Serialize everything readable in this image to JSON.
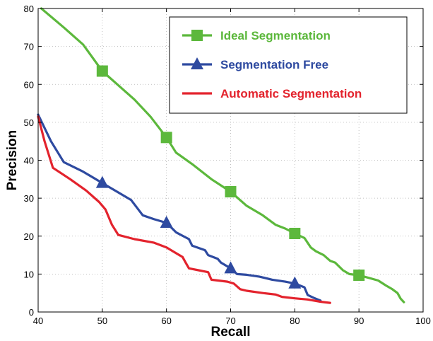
{
  "chart_data": {
    "type": "line",
    "xlabel": "Recall",
    "ylabel": "Precision",
    "xlim": [
      40,
      100
    ],
    "ylim": [
      0,
      80
    ],
    "xticks": [
      40,
      50,
      60,
      70,
      80,
      90,
      100
    ],
    "yticks": [
      0,
      10,
      20,
      30,
      40,
      50,
      60,
      70,
      80
    ],
    "grid": true,
    "legend_position": "top-right",
    "series": [
      {
        "name": "Ideal Segmentation",
        "color": "#5cb83c",
        "marker": "square",
        "marker_points": [
          [
            50,
            63.5
          ],
          [
            60,
            46
          ],
          [
            70,
            31.7
          ],
          [
            80,
            20.7
          ],
          [
            90,
            9.7
          ]
        ],
        "points": [
          [
            40.5,
            80
          ],
          [
            44,
            75
          ],
          [
            47,
            70.5
          ],
          [
            50,
            63.5
          ],
          [
            52,
            60.5
          ],
          [
            55,
            56
          ],
          [
            57.5,
            51.5
          ],
          [
            60,
            46
          ],
          [
            61.5,
            42
          ],
          [
            64,
            39
          ],
          [
            67,
            35
          ],
          [
            70,
            31.7
          ],
          [
            72.5,
            28
          ],
          [
            75,
            25.5
          ],
          [
            77,
            23
          ],
          [
            78.5,
            22
          ],
          [
            80,
            20.7
          ],
          [
            81.5,
            19.5
          ],
          [
            82.5,
            17
          ],
          [
            83.3,
            16
          ],
          [
            84.5,
            15
          ],
          [
            85.5,
            13.5
          ],
          [
            86.3,
            13
          ],
          [
            87.5,
            11
          ],
          [
            88.5,
            10
          ],
          [
            90,
            9.7
          ],
          [
            91.5,
            9
          ],
          [
            93,
            8.3
          ],
          [
            94.2,
            7
          ],
          [
            95.2,
            6
          ],
          [
            96,
            5
          ],
          [
            96.5,
            3.5
          ],
          [
            97,
            2.6
          ]
        ]
      },
      {
        "name": "Segmentation Free",
        "color": "#2e4aa0",
        "marker": "triangle",
        "marker_points": [
          [
            50,
            34
          ],
          [
            60,
            23.5
          ],
          [
            70,
            11.5
          ],
          [
            80,
            7.5
          ]
        ],
        "points": [
          [
            40,
            52
          ],
          [
            42,
            45
          ],
          [
            44,
            39.5
          ],
          [
            47,
            37
          ],
          [
            50,
            34
          ],
          [
            52,
            32
          ],
          [
            54.5,
            29.5
          ],
          [
            56.3,
            25.5
          ],
          [
            58,
            24.5
          ],
          [
            60,
            23.5
          ],
          [
            61.5,
            21
          ],
          [
            63.5,
            19.2
          ],
          [
            64,
            17.5
          ],
          [
            66,
            16.3
          ],
          [
            66.5,
            15
          ],
          [
            68,
            14
          ],
          [
            68.5,
            13
          ],
          [
            70,
            11.5
          ],
          [
            71,
            10
          ],
          [
            72.5,
            9.8
          ],
          [
            74.5,
            9.3
          ],
          [
            76.5,
            8.5
          ],
          [
            78.5,
            8
          ],
          [
            80,
            7.5
          ],
          [
            81.5,
            6.5
          ],
          [
            82,
            4.5
          ],
          [
            83,
            3.7
          ],
          [
            84,
            3
          ]
        ]
      },
      {
        "name": "Automatic Segmentation",
        "color": "#e3232d",
        "marker": "none",
        "marker_points": [],
        "points": [
          [
            40,
            51.5
          ],
          [
            41,
            45
          ],
          [
            42.3,
            38
          ],
          [
            45,
            35
          ],
          [
            47.5,
            32
          ],
          [
            49.5,
            29
          ],
          [
            50.5,
            27
          ],
          [
            51.5,
            23
          ],
          [
            52.5,
            20.3
          ],
          [
            55,
            19.2
          ],
          [
            58,
            18.3
          ],
          [
            60,
            17
          ],
          [
            61.5,
            15.5
          ],
          [
            62.5,
            14.5
          ],
          [
            63,
            13
          ],
          [
            63.5,
            11.5
          ],
          [
            65,
            11
          ],
          [
            66.5,
            10.5
          ],
          [
            67,
            8.5
          ],
          [
            69.5,
            8
          ],
          [
            70.5,
            7.5
          ],
          [
            71.5,
            6
          ],
          [
            72.5,
            5.6
          ],
          [
            75,
            5
          ],
          [
            77,
            4.6
          ],
          [
            78,
            4
          ],
          [
            80,
            3.6
          ],
          [
            82,
            3.3
          ],
          [
            84,
            2.7
          ],
          [
            85.5,
            2.4
          ]
        ]
      }
    ]
  }
}
